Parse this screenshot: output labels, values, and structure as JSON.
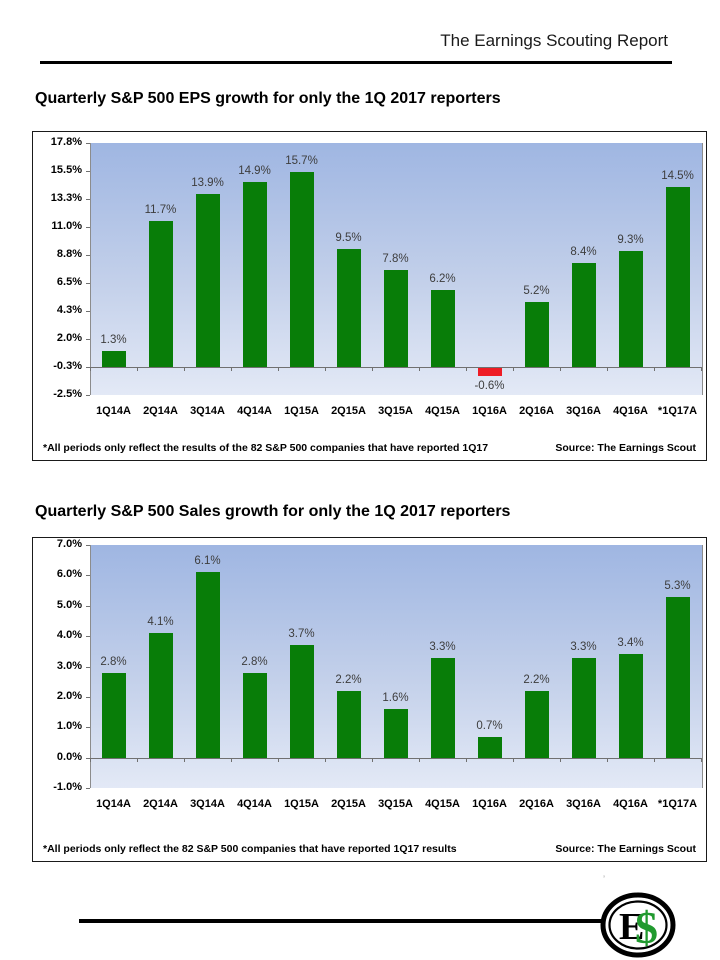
{
  "header": {
    "report_title": "The Earnings Scouting Report"
  },
  "chart_data": [
    {
      "type": "bar",
      "title": "Quarterly S&P 500 EPS growth for only the 1Q 2017 reporters",
      "categories": [
        "1Q14A",
        "2Q14A",
        "3Q14A",
        "4Q14A",
        "1Q15A",
        "2Q15A",
        "3Q15A",
        "4Q15A",
        "1Q16A",
        "2Q16A",
        "3Q16A",
        "4Q16A",
        "*1Q17A"
      ],
      "values": [
        1.3,
        11.7,
        13.9,
        14.9,
        15.7,
        9.5,
        7.8,
        6.2,
        -0.6,
        5.2,
        8.4,
        9.3,
        14.5
      ],
      "value_labels": [
        "1.3%",
        "11.7%",
        "13.9%",
        "14.9%",
        "15.7%",
        "9.5%",
        "7.8%",
        "6.2%",
        "-0.6%",
        "5.2%",
        "8.4%",
        "9.3%",
        "14.5%"
      ],
      "y_tick_labels": [
        "17.8%",
        "15.5%",
        "13.3%",
        "11.0%",
        "8.8%",
        "6.5%",
        "4.3%",
        "2.0%",
        "-0.3%",
        "-2.5%"
      ],
      "ylim": [
        -2.5,
        17.8
      ],
      "units_per_tick": 2.25,
      "baseline_tick_index": 8,
      "bar_color": "#087d08",
      "negative_bar_color": "#ee1c25",
      "grid": "off",
      "legend": "none",
      "footnote": "*All periods only reflect the results of the 82 S&P 500 companies that have reported 1Q17",
      "source": "Source: The Earnings Scout"
    },
    {
      "type": "bar",
      "title": "Quarterly S&P 500 Sales growth for only the 1Q 2017 reporters",
      "categories": [
        "1Q14A",
        "2Q14A",
        "3Q14A",
        "4Q14A",
        "1Q15A",
        "2Q15A",
        "3Q15A",
        "4Q15A",
        "1Q16A",
        "2Q16A",
        "3Q16A",
        "4Q16A",
        "*1Q17A"
      ],
      "values": [
        2.8,
        4.1,
        6.1,
        2.8,
        3.7,
        2.2,
        1.6,
        3.3,
        0.7,
        2.2,
        3.3,
        3.4,
        5.3
      ],
      "value_labels": [
        "2.8%",
        "4.1%",
        "6.1%",
        "2.8%",
        "3.7%",
        "2.2%",
        "1.6%",
        "3.3%",
        "0.7%",
        "2.2%",
        "3.3%",
        "3.4%",
        "5.3%"
      ],
      "y_tick_labels": [
        "7.0%",
        "6.0%",
        "5.0%",
        "4.0%",
        "3.0%",
        "2.0%",
        "1.0%",
        "0.0%",
        "-1.0%"
      ],
      "ylim": [
        -1.0,
        7.0
      ],
      "units_per_tick": 1.0,
      "baseline_tick_index": 7,
      "bar_color": "#087d08",
      "negative_bar_color": "#ee1c25",
      "grid": "off",
      "legend": "none",
      "footnote": "*All periods only reflect the 82 S&P 500 companies that have reported 1Q17 results",
      "source": "Source: The Earnings Scout"
    }
  ],
  "footer": {
    "logo": {
      "letter_e": "E",
      "letter_s": "$",
      "ring_color": "#000000",
      "dollar_color": "#219a2f"
    }
  }
}
